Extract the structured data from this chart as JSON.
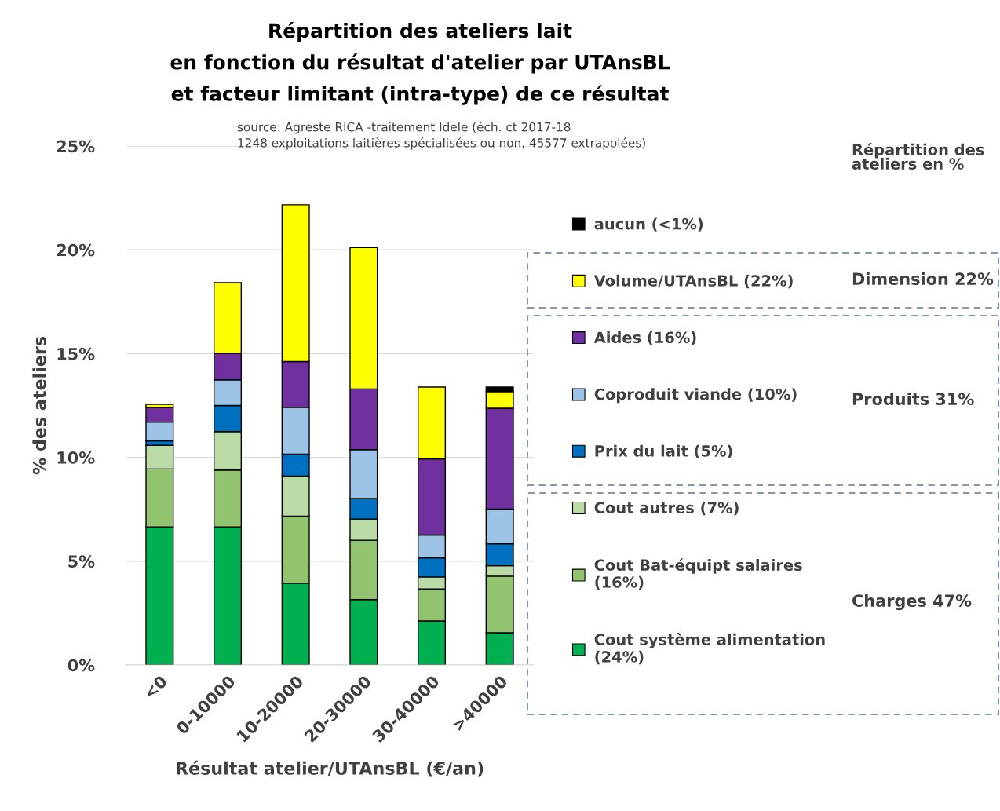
{
  "chart_data": {
    "type": "bar",
    "stacked": true,
    "title": "Répartition des ateliers lait\nen fonction du résultat d'atelier par UTAnsBL\net facteur limitant (intra-type) de ce résultat",
    "subtitle": "source: Agreste RICA -traitement Idele (éch. ct 2017-18\n1248 exploitations laitières spécialisées ou non, 45577 extrapolées)",
    "xlabel": "Résultat atelier/UTAnsBL (€/an)",
    "ylabel": "% des ateliers",
    "categories": [
      "<0",
      "0-10000",
      "10-20000",
      "20-30000",
      "30-40000",
      ">40000"
    ],
    "series": [
      {
        "name": "Cout système alimentation\n(24%)",
        "color": "#00b050",
        "values": [
          6.65,
          6.65,
          3.94,
          3.15,
          2.12,
          1.55
        ]
      },
      {
        "name": "Cout Bat-équipt salaires\n(16%)",
        "color": "#92c46f",
        "values": [
          2.79,
          2.74,
          3.23,
          2.86,
          1.54,
          2.73
        ]
      },
      {
        "name": "Cout autres (7%)",
        "color": "#bbdba6",
        "values": [
          1.14,
          1.85,
          1.93,
          1.02,
          0.58,
          0.5
        ]
      },
      {
        "name": "Prix du lait (5%)",
        "color": "#0070c0",
        "values": [
          0.22,
          1.26,
          1.06,
          0.99,
          0.92,
          1.06
        ]
      },
      {
        "name": "Coproduit viande (10%)",
        "color": "#9dc3e6",
        "values": [
          0.9,
          1.24,
          2.25,
          2.35,
          1.1,
          1.67
        ]
      },
      {
        "name": "Aides (16%)",
        "color": "#7030a0",
        "values": [
          0.71,
          1.28,
          2.21,
          2.93,
          3.67,
          4.86
        ]
      },
      {
        "name": "Volume/UTAnsBL (22%)",
        "color": "#ffff00",
        "values": [
          0.14,
          3.4,
          7.55,
          6.81,
          3.46,
          0.8
        ]
      },
      {
        "name": "aucun (<1%)",
        "color": "#000000",
        "values": [
          0,
          0,
          0,
          0,
          0,
          0.22
        ]
      }
    ],
    "ylim": [
      0,
      25
    ],
    "yticks": [
      {
        "value": 0,
        "label": "0%"
      },
      {
        "value": 5,
        "label": "5%"
      },
      {
        "value": 10,
        "label": "10%"
      },
      {
        "value": 15,
        "label": "15%"
      },
      {
        "value": 20,
        "label": "20%"
      },
      {
        "value": 25,
        "label": "25%"
      }
    ],
    "grid": "y",
    "legend": "right",
    "annotations": [
      "Répartition des ateliers en %",
      "Dimension 22%",
      "Produits 31%",
      "Charges 47%"
    ]
  }
}
